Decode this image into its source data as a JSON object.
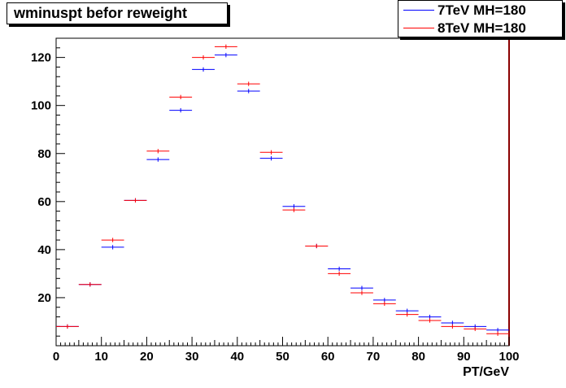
{
  "chart_data": {
    "type": "scatter",
    "title": "wminuspt befor reweight",
    "xlabel": "PT/GeV",
    "ylabel": "",
    "xlim": [
      0,
      100
    ],
    "ylim": [
      0,
      128
    ],
    "xticks": [
      0,
      10,
      20,
      30,
      40,
      50,
      60,
      70,
      80,
      90,
      100
    ],
    "yticks": [
      20,
      40,
      60,
      80,
      100,
      120
    ],
    "bin_width": 5,
    "x": [
      2.5,
      7.5,
      12.5,
      17.5,
      22.5,
      27.5,
      32.5,
      37.5,
      42.5,
      47.5,
      52.5,
      57.5,
      62.5,
      67.5,
      72.5,
      77.5,
      82.5,
      87.5,
      92.5,
      97.5
    ],
    "legend_position": "top-right",
    "series": [
      {
        "name": "7TeV MH=180",
        "color": "#0000ff",
        "values": [
          8,
          25.5,
          41,
          60.5,
          77.5,
          98,
          115,
          121,
          106,
          78,
          58,
          41.5,
          32,
          24,
          19,
          14.5,
          12,
          9.5,
          8,
          6.5
        ]
      },
      {
        "name": "8TeV MH=180",
        "color": "#ff0000",
        "values": [
          8,
          25.5,
          44,
          60.5,
          81,
          103.5,
          120,
          124.5,
          109,
          80.5,
          56.5,
          41.5,
          30,
          22,
          17.5,
          13,
          10.5,
          8,
          7,
          5
        ]
      }
    ]
  }
}
